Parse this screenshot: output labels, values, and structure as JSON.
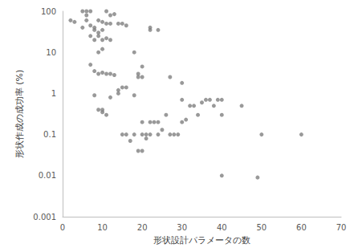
{
  "chart_data": {
    "type": "scatter",
    "x_label": "形状設計パラメータの数",
    "y_label": "形状作成の成功率 (%)",
    "x": [
      2,
      3,
      5,
      6,
      6,
      7,
      6,
      7,
      5,
      8,
      8,
      9,
      10,
      11,
      12,
      13,
      15,
      16,
      9,
      10,
      12,
      11,
      7,
      8,
      9,
      10,
      11,
      9,
      10,
      12,
      7,
      8,
      9,
      10,
      11,
      12,
      13,
      14,
      15,
      16,
      14,
      12,
      8,
      9,
      10,
      10,
      11,
      15,
      16,
      17,
      18,
      19,
      20,
      20,
      21,
      21,
      22,
      22,
      23,
      24,
      25,
      24,
      26,
      27,
      28,
      29,
      30,
      31,
      30,
      30,
      32,
      33,
      34,
      35,
      36,
      37,
      38,
      39,
      40,
      40,
      40,
      45,
      49,
      50,
      60,
      18,
      19,
      19,
      20,
      20,
      18,
      22,
      22,
      24,
      27,
      20,
      14
    ],
    "values": [
      60,
      55,
      100,
      100,
      80,
      100,
      60,
      45,
      40,
      35,
      40,
      30,
      35,
      100,
      80,
      85,
      50,
      45,
      60,
      55,
      50,
      50,
      25,
      20,
      25,
      20,
      22,
      10,
      12,
      20,
      5,
      3.5,
      3,
      3.2,
      3,
      3,
      2.8,
      1.2,
      1.4,
      1.4,
      1,
      0.8,
      0.9,
      0.4,
      0.35,
      0.4,
      0.3,
      0.1,
      0.1,
      0.07,
      0.1,
      0.04,
      0.04,
      0.1,
      0.08,
      0.1,
      0.2,
      0.1,
      0.2,
      0.2,
      0.13,
      0.1,
      0.3,
      0.1,
      0.1,
      0.1,
      0.2,
      0.23,
      0.7,
      1.8,
      0.5,
      0.5,
      0.3,
      0.6,
      0.7,
      0.7,
      0.5,
      0.7,
      0.7,
      0.3,
      0.01,
      0.5,
      0.009,
      0.1,
      0.1,
      10,
      3,
      2.5,
      4.5,
      2.5,
      0.9,
      40,
      35,
      35,
      2.5,
      0.2,
      50
    ],
    "color": "#7f7f7f",
    "marker": "circle",
    "log": "y",
    "grid": false,
    "xlim": [
      0,
      70
    ],
    "xticks": [
      0,
      10,
      20,
      30,
      40,
      50,
      60,
      70
    ],
    "ylim": [
      0.001,
      100
    ],
    "yticks": [
      0.001,
      0.01,
      0.1,
      1,
      10,
      100
    ]
  }
}
